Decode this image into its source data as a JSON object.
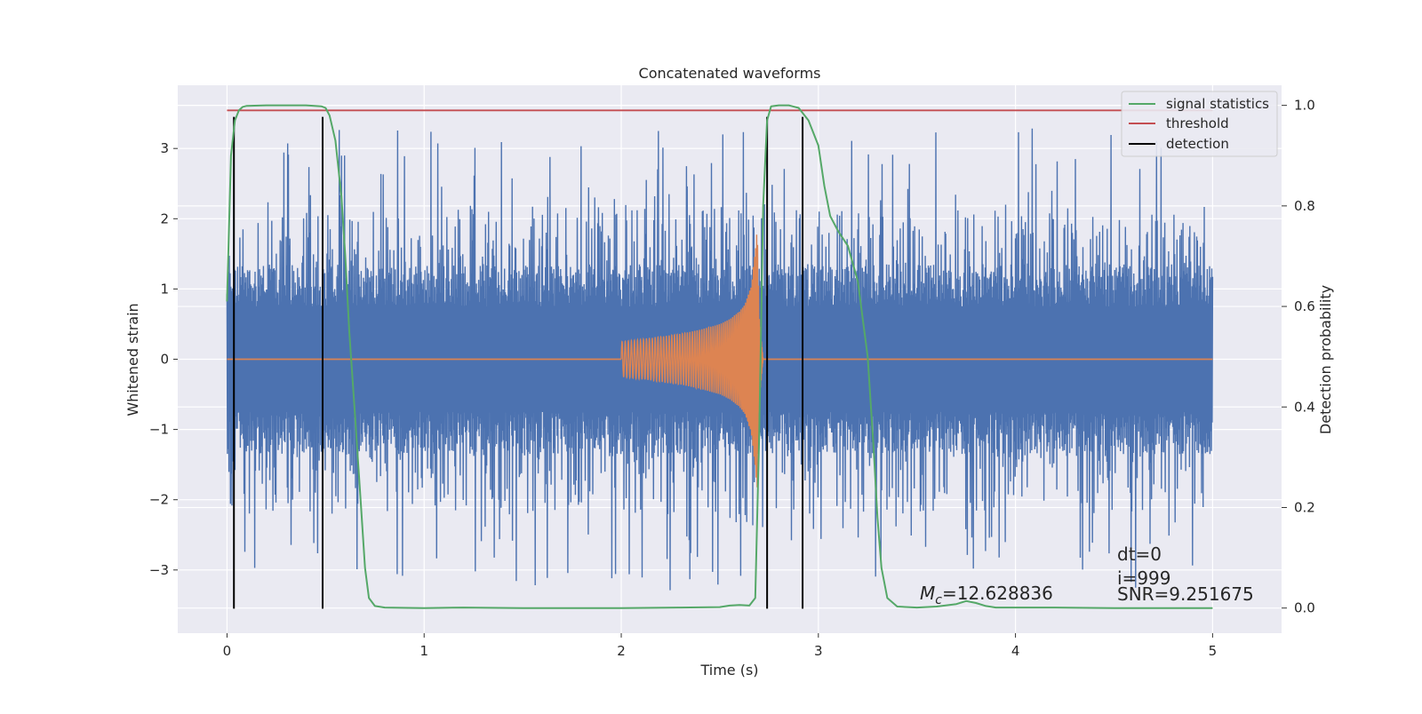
{
  "chart_data": {
    "type": "line",
    "title": "Concatenated waveforms",
    "xlabel": "Time (s)",
    "ylabel": "Whitened strain",
    "y2label": "Detection probability",
    "xlim": [
      -0.25,
      5.35
    ],
    "ylim": [
      -3.9,
      3.9
    ],
    "y2lim": [
      -0.05,
      1.04
    ],
    "xticks": [
      0,
      1,
      2,
      3,
      4,
      5
    ],
    "xtick_labels": [
      "0",
      "1",
      "2",
      "3",
      "4",
      "5"
    ],
    "yticks": [
      -3,
      -2,
      -1,
      0,
      1,
      2,
      3
    ],
    "ytick_labels": [
      "−3",
      "−2",
      "−1",
      "0",
      "1",
      "2",
      "3"
    ],
    "y2ticks": [
      0.0,
      0.2,
      0.4,
      0.6,
      0.8,
      1.0
    ],
    "y2tick_labels": [
      "0.0",
      "0.2",
      "0.4",
      "0.6",
      "0.8",
      "1.0"
    ],
    "grid": true,
    "legend_position": "top-right",
    "colors": {
      "background": "#eaeaf2",
      "grid": "#ffffff",
      "strain": "#4c72b0",
      "injection": "#dd8452",
      "signal_statistics": "#55a868",
      "threshold": "#c44e52",
      "detection": "#000000"
    },
    "series": [
      {
        "name": "signal statistics",
        "axis": "right",
        "x": [
          0.0,
          0.02,
          0.04,
          0.06,
          0.08,
          0.1,
          0.2,
          0.3,
          0.4,
          0.48,
          0.5,
          0.52,
          0.55,
          0.58,
          0.6,
          0.62,
          0.65,
          0.68,
          0.7,
          0.72,
          0.75,
          0.8,
          1.0,
          1.2,
          1.5,
          2.0,
          2.3,
          2.5,
          2.55,
          2.6,
          2.65,
          2.68,
          2.7,
          2.72,
          2.74,
          2.76,
          2.8,
          2.85,
          2.9,
          2.95,
          3.0,
          3.03,
          3.06,
          3.1,
          3.15,
          3.2,
          3.25,
          3.28,
          3.3,
          3.32,
          3.35,
          3.4,
          3.5,
          3.6,
          3.7,
          3.75,
          3.8,
          3.85,
          3.9,
          4.0,
          4.2,
          4.5,
          4.8,
          5.0
        ],
        "y": [
          0.61,
          0.9,
          0.97,
          0.99,
          0.997,
          0.999,
          1.0,
          1.0,
          1.0,
          0.998,
          0.995,
          0.98,
          0.93,
          0.82,
          0.7,
          0.55,
          0.38,
          0.2,
          0.08,
          0.02,
          0.004,
          0.001,
          0.0,
          0.001,
          0.0,
          0.0,
          0.001,
          0.002,
          0.005,
          0.006,
          0.005,
          0.02,
          0.35,
          0.8,
          0.97,
          0.998,
          1.0,
          1.0,
          0.995,
          0.97,
          0.92,
          0.84,
          0.78,
          0.75,
          0.72,
          0.65,
          0.5,
          0.32,
          0.18,
          0.08,
          0.02,
          0.003,
          0.001,
          0.003,
          0.008,
          0.014,
          0.01,
          0.004,
          0.001,
          0.001,
          0.001,
          0.0,
          0.0,
          0.0
        ]
      },
      {
        "name": "threshold",
        "axis": "right",
        "x": [
          0.0,
          5.0
        ],
        "y": [
          0.99,
          0.99
        ]
      },
      {
        "name": "detection",
        "axis": "left",
        "segments_x": [
          0.035,
          0.485,
          2.74,
          2.92
        ],
        "y_range": [
          -3.55,
          3.45
        ]
      },
      {
        "axis": "left",
        "description_role": "strain",
        "x_range": [
          0,
          5
        ],
        "envelope": [
          0.75,
          2.2,
          3.3
        ]
      },
      {
        "axis": "left",
        "description_role": "injection",
        "x": [
          2.0,
          2.1,
          2.2,
          2.3,
          2.4,
          2.5,
          2.55,
          2.6,
          2.63,
          2.66,
          2.68,
          2.69,
          2.7,
          2.72
        ],
        "amplitude": [
          0.25,
          0.28,
          0.32,
          0.36,
          0.42,
          0.5,
          0.57,
          0.68,
          0.8,
          1.05,
          1.55,
          1.88,
          0.6,
          0.0
        ]
      }
    ],
    "legend": [
      "signal statistics",
      "threshold",
      "detection"
    ],
    "annotations": {
      "mc_label": "=12.628836",
      "dt": "dt=0",
      "i": "i=999",
      "snr": "SNR=9.251675"
    }
  }
}
